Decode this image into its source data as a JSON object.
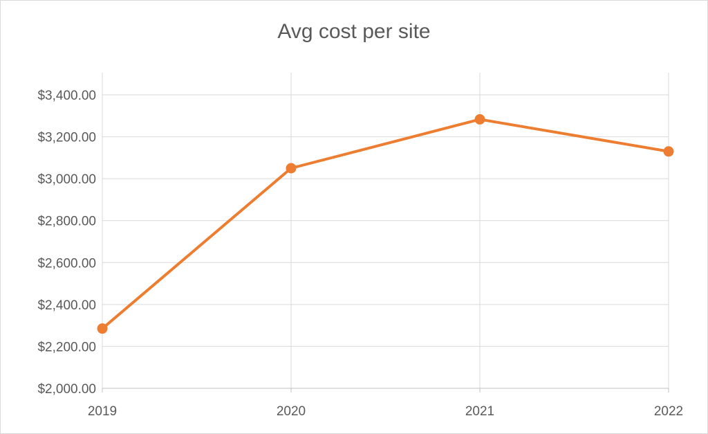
{
  "chart_data": {
    "type": "line",
    "title": "Avg cost per site",
    "xlabel": "",
    "ylabel": "",
    "categories": [
      "2019",
      "2020",
      "2021",
      "2022"
    ],
    "series": [
      {
        "values": [
          2285,
          3050,
          3283,
          3130
        ]
      }
    ],
    "ylim": [
      2000,
      3400
    ],
    "ytick_values": [
      2000,
      2200,
      2400,
      2600,
      2800,
      3000,
      3200,
      3400
    ],
    "ytick_labels": [
      "$2,000.00",
      "$2,200.00",
      "$2,400.00",
      "$2,600.00",
      "$2,800.00",
      "$3,000.00",
      "$3,200.00",
      "$3,400.00"
    ],
    "grid": true,
    "legend": "none",
    "colors": {
      "line": "#ed7d31",
      "grid": "#d9d9d9",
      "axis": "#bfbfbf",
      "text": "#595959"
    }
  }
}
